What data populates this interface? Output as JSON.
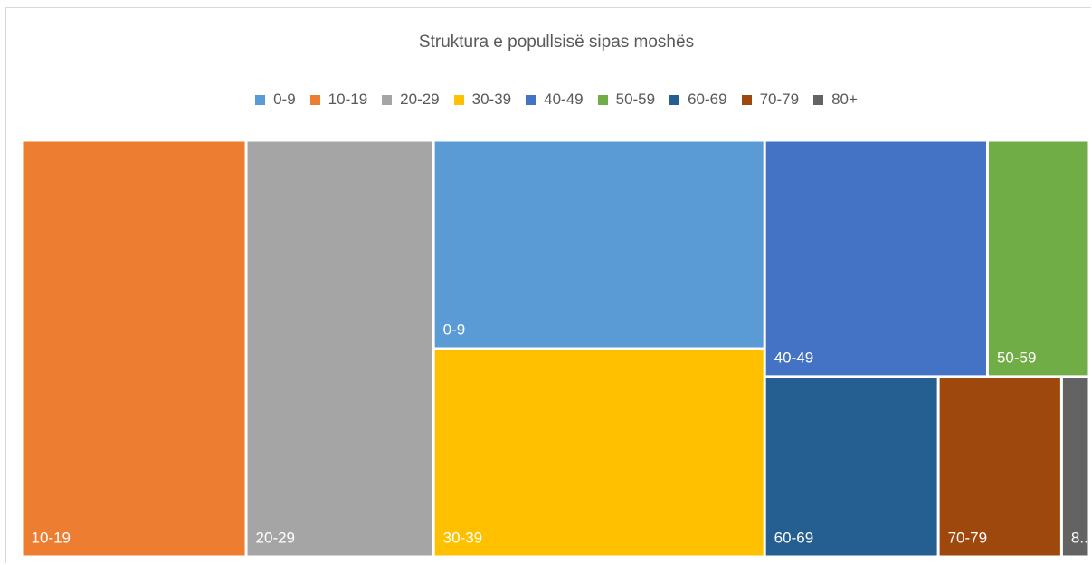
{
  "chart_data": {
    "type": "treemap",
    "title": "Struktura e popullsisë sipas moshës",
    "legend_position": "top",
    "items": [
      {
        "name": "10-19",
        "label": "10-19",
        "value": 20.6,
        "color": "#ED7D31"
      },
      {
        "name": "20-29",
        "label": "20-29",
        "value": 17.2,
        "color": "#A5A5A5"
      },
      {
        "name": "0-9",
        "label": "0-9",
        "value": 15.2,
        "color": "#5B9BD5"
      },
      {
        "name": "30-39",
        "label": "30-39",
        "value": 15.2,
        "color": "#FFC000"
      },
      {
        "name": "40-49",
        "label": "40-49",
        "value": 11.6,
        "color": "#4472C4"
      },
      {
        "name": "50-59",
        "label": "50-59",
        "value": 5.3,
        "color": "#70AD47"
      },
      {
        "name": "60-69",
        "label": "60-69",
        "value": 6.9,
        "color": "#255E91"
      },
      {
        "name": "70-79",
        "label": "70-79",
        "value": 4.9,
        "color": "#9E480E"
      },
      {
        "name": "80+",
        "label": "8...",
        "value": 1.1,
        "color": "#636363"
      }
    ],
    "legend": [
      {
        "name": "0-9",
        "color": "#5B9BD5"
      },
      {
        "name": "10-19",
        "color": "#ED7D31"
      },
      {
        "name": "20-29",
        "color": "#A5A5A5"
      },
      {
        "name": "30-39",
        "color": "#FFC000"
      },
      {
        "name": "40-49",
        "color": "#4472C4"
      },
      {
        "name": "50-59",
        "color": "#70AD47"
      },
      {
        "name": "60-69",
        "color": "#255E91"
      },
      {
        "name": "70-79",
        "color": "#9E480E"
      },
      {
        "name": "80+",
        "color": "#636363"
      }
    ]
  }
}
